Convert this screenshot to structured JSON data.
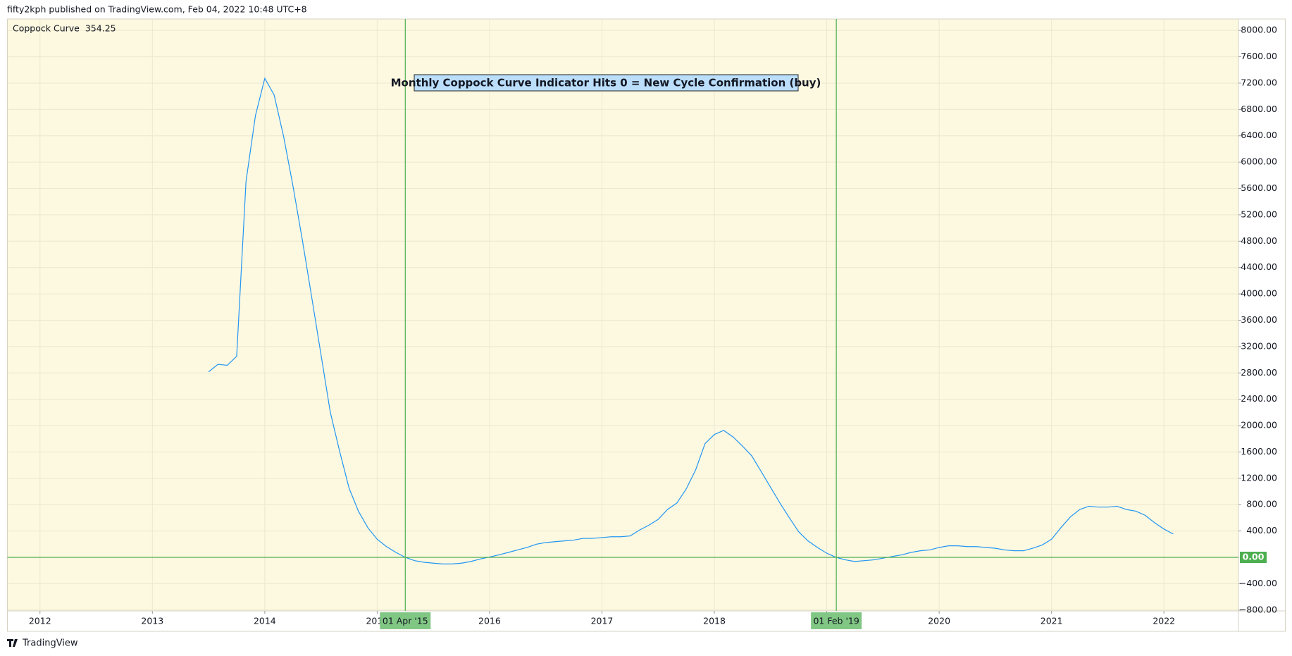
{
  "header": "fifty2kph published on TradingView.com, Feb 04, 2022 10:48 UTC+8",
  "footer": "TradingView",
  "chart_data": {
    "type": "line",
    "annotation": "Monthly Coppock Curve Indicator Hits 0 = New Cycle Confirmation (buy)",
    "series": [
      {
        "name": "Coppock Curve",
        "color": "#2196f3",
        "x": [
          2013.5,
          2013.583,
          2013.667,
          2013.75,
          2013.833,
          2013.917,
          2014,
          2014.083,
          2014.167,
          2014.25,
          2014.333,
          2014.417,
          2014.5,
          2014.583,
          2014.667,
          2014.75,
          2014.833,
          2014.917,
          2015,
          2015.083,
          2015.167,
          2015.25,
          2015.333,
          2015.417,
          2015.5,
          2015.583,
          2015.667,
          2015.75,
          2015.833,
          2015.917,
          2016,
          2016.083,
          2016.167,
          2016.25,
          2016.333,
          2016.417,
          2016.5,
          2016.583,
          2016.667,
          2016.75,
          2016.833,
          2016.917,
          2017,
          2017.083,
          2017.167,
          2017.25,
          2017.333,
          2017.417,
          2017.5,
          2017.583,
          2017.667,
          2017.75,
          2017.833,
          2017.917,
          2018,
          2018.083,
          2018.167,
          2018.25,
          2018.333,
          2018.417,
          2018.5,
          2018.583,
          2018.667,
          2018.75,
          2018.833,
          2018.917,
          2019,
          2019.083,
          2019.167,
          2019.25,
          2019.333,
          2019.417,
          2019.5,
          2019.583,
          2019.667,
          2019.75,
          2019.833,
          2019.917,
          2020,
          2020.083,
          2020.167,
          2020.25,
          2020.333,
          2020.417,
          2020.5,
          2020.583,
          2020.667,
          2020.75,
          2020.833,
          2020.917,
          2021,
          2021.083,
          2021.167,
          2021.25,
          2021.333,
          2021.417,
          2021.5,
          2021.583,
          2021.667,
          2021.75,
          2021.833,
          2021.917,
          2022,
          2022.083
        ],
        "values": [
          2816,
          2930,
          2916,
          3054,
          5707,
          6708,
          7272,
          7021,
          6395,
          5645,
          4831,
          3955,
          3079,
          2203,
          1602,
          1051,
          701,
          450,
          275,
          163,
          75,
          0,
          -50,
          -75,
          -88,
          -100,
          -100,
          -88,
          -63,
          -25,
          5,
          38,
          75,
          113,
          150,
          200,
          225,
          238,
          250,
          263,
          288,
          288,
          300,
          313,
          313,
          325,
          413,
          488,
          576,
          726,
          826,
          1039,
          1327,
          1727,
          1865,
          1927,
          1827,
          1690,
          1540,
          1302,
          1064,
          826,
          601,
          388,
          250,
          150,
          63,
          0,
          -38,
          -63,
          -50,
          -38,
          -13,
          13,
          38,
          75,
          100,
          113,
          150,
          175,
          175,
          163,
          163,
          150,
          138,
          113,
          100,
          100,
          138,
          188,
          275,
          450,
          613,
          726,
          776,
          763,
          763,
          776,
          726,
          701,
          638,
          526,
          430,
          354.25
        ]
      }
    ],
    "xlim": [
      2011.71,
      2022.663
    ],
    "xticks": [
      2012,
      2013,
      2014,
      2015,
      2016,
      2017,
      2018,
      2019,
      2020,
      2021,
      2022
    ],
    "ylim": [
      -813,
      8173
    ],
    "yticks": [
      {
        "value": -800,
        "label": "−800.00"
      },
      {
        "value": -400,
        "label": "−400.00"
      },
      {
        "value": 400,
        "label": "400.00"
      },
      {
        "value": 800,
        "label": "800.00"
      },
      {
        "value": 1200,
        "label": "1200.00"
      },
      {
        "value": 1600,
        "label": "1600.00"
      },
      {
        "value": 2000,
        "label": "2000.00"
      },
      {
        "value": 2400,
        "label": "2400.00"
      },
      {
        "value": 2800,
        "label": "2800.00"
      },
      {
        "value": 3200,
        "label": "3200.00"
      },
      {
        "value": 3600,
        "label": "3600.00"
      },
      {
        "value": 4000,
        "label": "4000.00"
      },
      {
        "value": 4400,
        "label": "4400.00"
      },
      {
        "value": 4800,
        "label": "4800.00"
      },
      {
        "value": 5200,
        "label": "5200.00"
      },
      {
        "value": 5600,
        "label": "5600.00"
      },
      {
        "value": 6000,
        "label": "6000.00"
      },
      {
        "value": 6400,
        "label": "6400.00"
      },
      {
        "value": 6800,
        "label": "6800.00"
      },
      {
        "value": 7200,
        "label": "7200.00"
      },
      {
        "value": 7600,
        "label": "7600.00"
      },
      {
        "value": 8000,
        "label": "8000.00"
      }
    ],
    "hline": {
      "value": 0,
      "label": "0.00",
      "color": "#4caf50"
    },
    "vlines": [
      {
        "x": 2015.25,
        "label": "01 Apr '15"
      },
      {
        "x": 2019.085,
        "label": "01 Feb '19"
      }
    ],
    "vline_color": "#4caf50",
    "grid": true
  }
}
